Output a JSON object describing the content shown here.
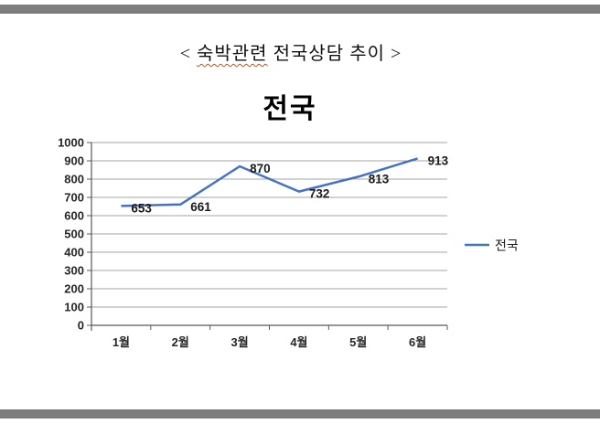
{
  "page": {
    "doc_title": {
      "prefix": "< ",
      "misspelled_word": "숙박관련",
      "rest": " 전국상담 추이 >",
      "squiggle_color": "#b5552d"
    },
    "top_bar_color": "#7d7d7d",
    "bottom_bar_color": "#7d7d7d"
  },
  "chart_data": {
    "type": "line",
    "title": "전국",
    "categories": [
      "1월",
      "2월",
      "3월",
      "4월",
      "5월",
      "6월"
    ],
    "series": [
      {
        "name": "전국",
        "values": [
          653,
          661,
          870,
          732,
          813,
          913
        ],
        "color": "#4472c4"
      }
    ],
    "xlabel": "",
    "ylabel": "",
    "ylim": [
      0,
      1000
    ],
    "ytick_step": 100,
    "grid": true,
    "data_labels": true,
    "legend_position": "right",
    "gridline_color": "#a6a6a6",
    "axis_color": "#595959"
  }
}
